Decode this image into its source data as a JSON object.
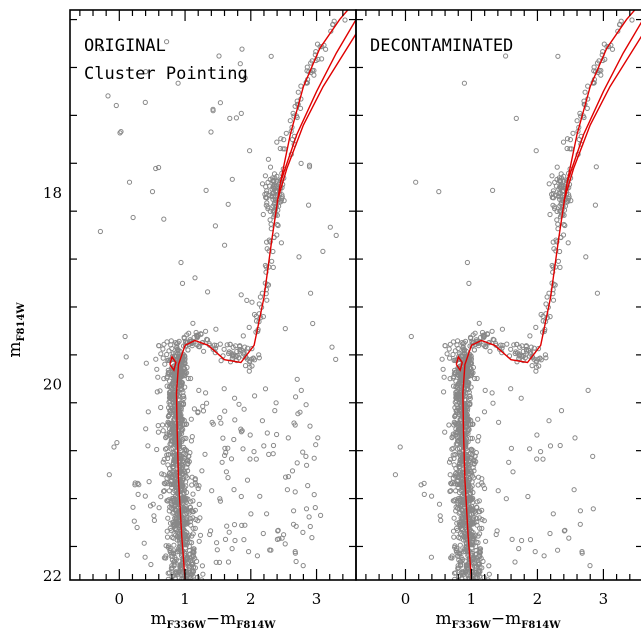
{
  "chart_data": [
    {
      "type": "scatter",
      "panel_label": [
        "ORIGINAL",
        "Cluster Pointing"
      ],
      "xlabel": {
        "main": "m",
        "sub1": "F336W",
        "dash": "−m",
        "sub2": "F814W"
      },
      "ylabel": {
        "main": "m",
        "sub": "F814W"
      },
      "xlim": [
        -0.75,
        3.6
      ],
      "ylim": [
        22.05,
        16.1
      ],
      "x_ticks": [
        0,
        1,
        2,
        3
      ],
      "y_ticks": [
        18,
        20,
        22
      ],
      "grid": false,
      "point_color": "#888888",
      "curve_color": "#e00000",
      "field_density": 1.0
    },
    {
      "type": "scatter",
      "panel_label": [
        "DECONTAMINATED"
      ],
      "xlabel": {
        "main": "m",
        "sub1": "F336W",
        "dash": "−m",
        "sub2": "F814W"
      },
      "xlim": [
        -0.75,
        3.6
      ],
      "ylim": [
        22.05,
        16.1
      ],
      "x_ticks": [
        0,
        1,
        2,
        3
      ],
      "y_ticks": [
        18,
        20,
        22
      ],
      "grid": false,
      "point_color": "#888888",
      "curve_color": "#e00000",
      "field_density": 0.35
    }
  ],
  "isochrone": {
    "main_branch": [
      [
        1.0,
        22.05
      ],
      [
        0.95,
        21.6
      ],
      [
        0.9,
        21.0
      ],
      [
        0.88,
        20.5
      ],
      [
        0.87,
        20.1
      ],
      [
        0.9,
        19.8
      ],
      [
        1.0,
        19.6
      ],
      [
        1.15,
        19.55
      ],
      [
        1.35,
        19.6
      ],
      [
        1.6,
        19.75
      ],
      [
        1.85,
        19.78
      ],
      [
        2.05,
        19.6
      ],
      [
        2.2,
        19.1
      ],
      [
        2.32,
        18.5
      ],
      [
        2.45,
        17.9
      ],
      [
        2.6,
        17.4
      ],
      [
        2.8,
        16.9
      ],
      [
        3.05,
        16.5
      ],
      [
        3.35,
        16.2
      ],
      [
        3.6,
        16.0
      ]
    ],
    "second_branch": [
      [
        2.45,
        17.9
      ],
      [
        2.7,
        17.4
      ],
      [
        3.0,
        16.95
      ],
      [
        3.3,
        16.55
      ],
      [
        3.6,
        16.2
      ]
    ],
    "hb_branch": [
      [
        2.4,
        18.1
      ],
      [
        2.55,
        17.75
      ],
      [
        2.8,
        17.3
      ],
      [
        3.1,
        16.9
      ],
      [
        3.6,
        16.35
      ]
    ],
    "turnoff_hook": [
      [
        0.77,
        19.8
      ],
      [
        0.8,
        19.72
      ],
      [
        0.86,
        19.78
      ],
      [
        0.83,
        19.86
      ],
      [
        0.77,
        19.8
      ]
    ],
    "rgb_clump": {
      "x": 2.4,
      "y": 18.05
    }
  }
}
